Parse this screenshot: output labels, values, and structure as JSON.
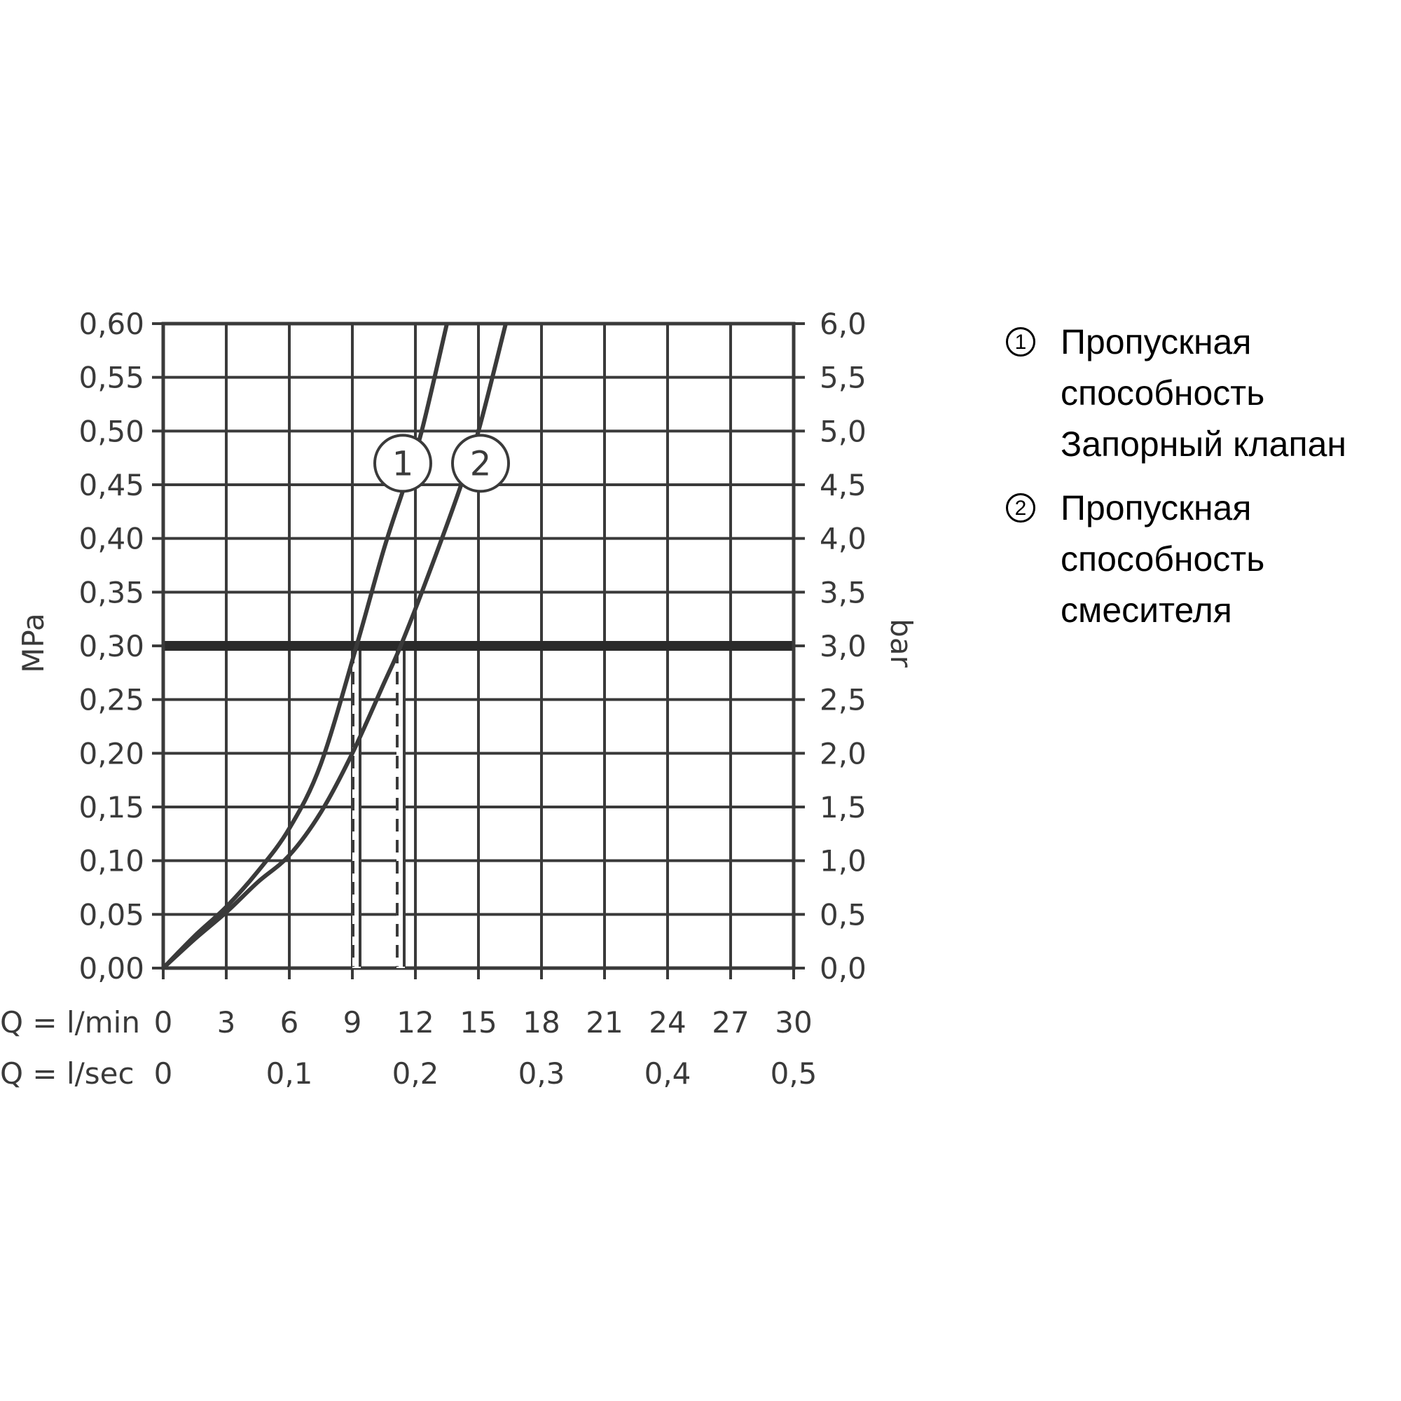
{
  "chart_data": {
    "type": "line",
    "x": {
      "label": "Q = l/min",
      "range": [
        0,
        30
      ],
      "ticks": [
        0,
        3,
        6,
        9,
        12,
        15,
        18,
        21,
        24,
        27,
        30
      ],
      "tick_labels": [
        "0",
        "3",
        "6",
        "9",
        "12",
        "15",
        "18",
        "21",
        "24",
        "27",
        "30"
      ]
    },
    "x2": {
      "label": "Q = l/sec",
      "ticks": [
        0,
        0.1,
        0.2,
        0.3,
        0.4,
        0.5
      ],
      "tick_labels": [
        "0",
        "0,1",
        "0,2",
        "0,3",
        "0,4",
        "0,5"
      ]
    },
    "y_left": {
      "label": "MPa",
      "range": [
        0,
        0.6
      ],
      "ticks": [
        0,
        0.05,
        0.1,
        0.15,
        0.2,
        0.25,
        0.3,
        0.35,
        0.4,
        0.45,
        0.5,
        0.55,
        0.6
      ],
      "tick_labels": [
        "0,00",
        "0,05",
        "0,10",
        "0,15",
        "0,20",
        "0,25",
        "0,30",
        "0,35",
        "0,40",
        "0,45",
        "0,50",
        "0,55",
        "0,60"
      ]
    },
    "y_right": {
      "label": "bar",
      "range": [
        0,
        6
      ],
      "ticks": [
        0,
        0.5,
        1,
        1.5,
        2,
        2.5,
        3,
        3.5,
        4,
        4.5,
        5,
        5.5,
        6
      ],
      "tick_labels": [
        "0,0",
        "0,5",
        "1,0",
        "1,5",
        "2,0",
        "2,5",
        "3,0",
        "3,5",
        "4,0",
        "4,5",
        "5,0",
        "5,5",
        "6,0"
      ]
    },
    "grid": true,
    "reference_line": {
      "y": 0.3
    },
    "series": [
      {
        "marker_label": "1",
        "x": [
          0,
          1.5,
          3,
          4.5,
          6,
          7.5,
          9.2,
          10.5,
          11.5,
          12.3,
          13.5
        ],
        "y": [
          0,
          0.03,
          0.057,
          0.09,
          0.13,
          0.19,
          0.3,
          0.39,
          0.45,
          0.5,
          0.6
        ],
        "marker_at": [
          11.4,
          0.47
        ]
      },
      {
        "marker_label": "2",
        "x": [
          0,
          1.5,
          3,
          4.5,
          6,
          7.5,
          9,
          10.5,
          11.3,
          12.5,
          14,
          15,
          16.3
        ],
        "y": [
          0,
          0.027,
          0.052,
          0.08,
          0.105,
          0.145,
          0.2,
          0.265,
          0.3,
          0.36,
          0.44,
          0.5,
          0.6
        ],
        "marker_at": [
          15.1,
          0.47
        ]
      }
    ],
    "dashed_drops": [
      9.2,
      11.3
    ],
    "style": {
      "line_color": "#3a3a3a",
      "grid_color": "#3a3a3a"
    }
  },
  "legend": {
    "items": [
      {
        "number": "1",
        "lines": [
          "Пропускная",
          "способность",
          "Запорный клапан"
        ]
      },
      {
        "number": "2",
        "lines": [
          "Пропускная",
          "способность",
          "смесителя"
        ]
      }
    ]
  }
}
